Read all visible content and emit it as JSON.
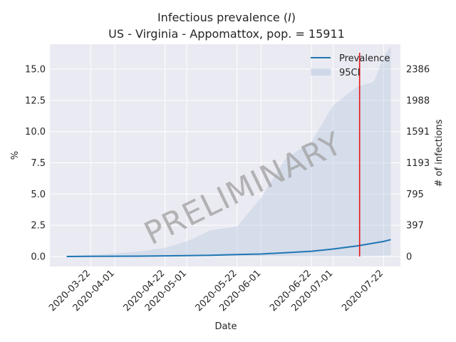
{
  "chart_data": {
    "type": "line",
    "title_line1": "Infectious prevalence (",
    "title_italic": "I",
    "title_line1_end": ")",
    "title_line2": "US - Virginia - Appomattox, pop. = 15911",
    "xlabel": "Date",
    "ylabel": "%",
    "ylabel_right": "# of infections",
    "x_ticks": [
      "2020-03-22",
      "2020-04-01",
      "2020-04-22",
      "2020-05-01",
      "2020-05-22",
      "2020-06-01",
      "2020-06-22",
      "2020-07-01",
      "2020-07-22"
    ],
    "y_ticks": [
      "0.0",
      "2.5",
      "5.0",
      "7.5",
      "10.0",
      "12.5",
      "15.0"
    ],
    "y_ticks_values": [
      0,
      2.5,
      5.0,
      7.5,
      10.0,
      12.5,
      15.0
    ],
    "y_right_ticks": [
      "0",
      "397",
      "795",
      "1193",
      "1591",
      "1988",
      "2386"
    ],
    "y_right_values": [
      0,
      397,
      795,
      1193,
      1591,
      1988,
      2386
    ],
    "xlim": [
      "2020-03-05",
      "2020-07-29"
    ],
    "ylim": [
      -0.8,
      17.0
    ],
    "vline_date": "2020-07-12",
    "legend": {
      "placement": "top-right",
      "entries": [
        "Prevalence",
        "95CI"
      ]
    },
    "watermark": "PRELIMINARY",
    "grid": true,
    "series": [
      {
        "name": "Prevalence",
        "color": "#1f77b4",
        "x": [
          "2020-03-12",
          "2020-03-22",
          "2020-04-01",
          "2020-04-11",
          "2020-04-22",
          "2020-05-01",
          "2020-05-11",
          "2020-05-22",
          "2020-06-01",
          "2020-06-11",
          "2020-06-22",
          "2020-07-01",
          "2020-07-11",
          "2020-07-22",
          "2020-07-25"
        ],
        "y": [
          0.0,
          0.01,
          0.02,
          0.03,
          0.05,
          0.07,
          0.1,
          0.15,
          0.2,
          0.3,
          0.42,
          0.6,
          0.85,
          1.2,
          1.35
        ]
      },
      {
        "name": "95CI",
        "color": "#b0c4de",
        "x": [
          "2020-03-12",
          "2020-03-22",
          "2020-04-01",
          "2020-04-11",
          "2020-04-22",
          "2020-05-01",
          "2020-05-11",
          "2020-05-22",
          "2020-06-01",
          "2020-06-11",
          "2020-06-22",
          "2020-07-01",
          "2020-07-11",
          "2020-07-18",
          "2020-07-22",
          "2020-07-25"
        ],
        "lower": [
          0,
          0,
          0,
          0,
          0,
          0,
          0,
          0,
          0,
          0,
          0,
          0.01,
          0.02,
          0.05,
          0.08,
          0.1
        ],
        "upper": [
          0.05,
          0.12,
          0.25,
          0.4,
          0.7,
          1.2,
          2.1,
          2.4,
          4.7,
          7.8,
          9.2,
          12.1,
          13.6,
          14.0,
          16.0,
          16.8
        ]
      }
    ]
  }
}
